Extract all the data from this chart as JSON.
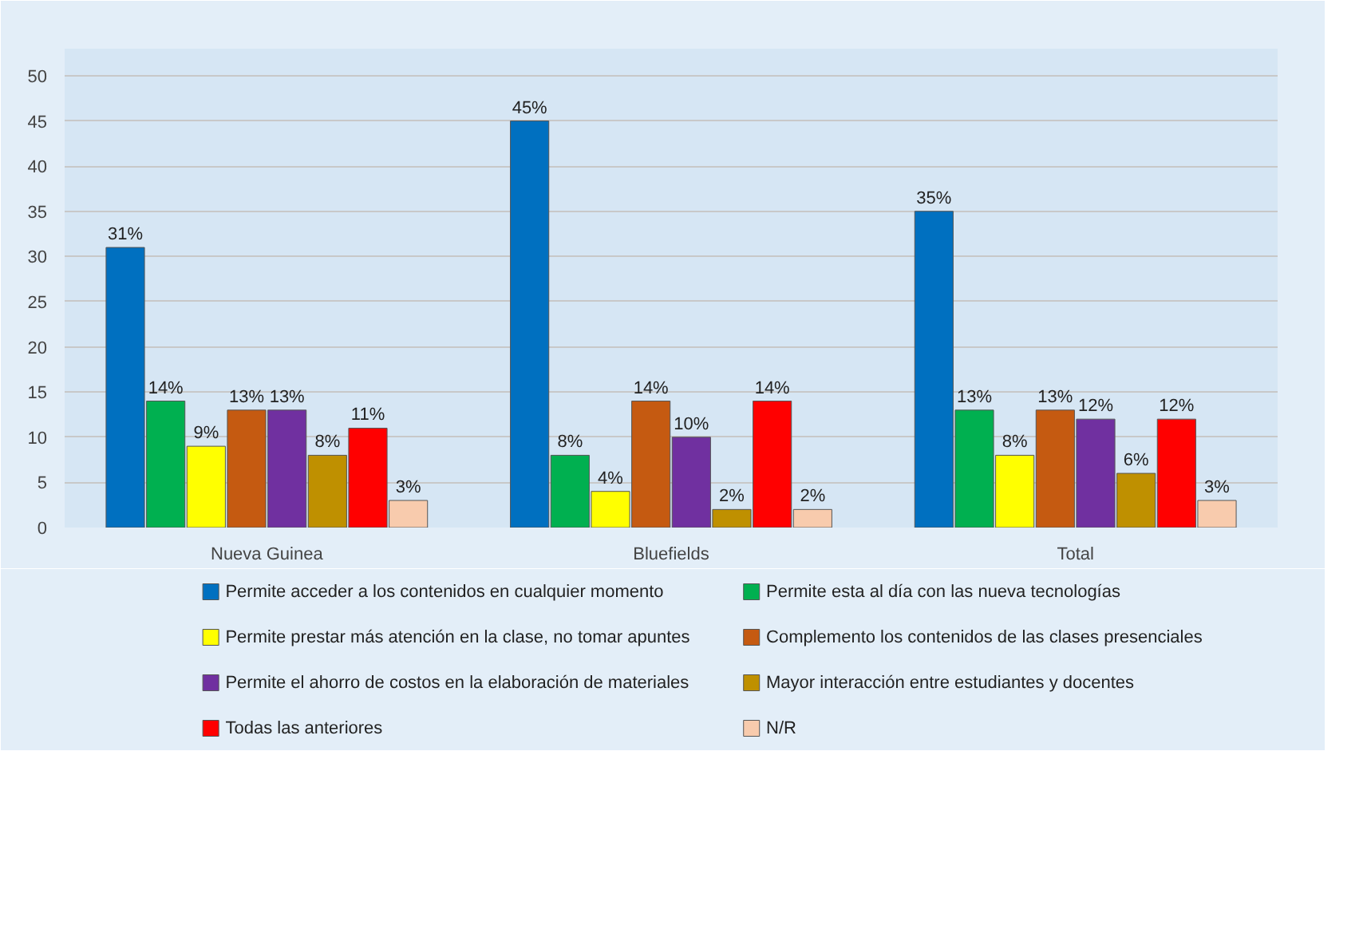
{
  "chart_data": {
    "type": "bar",
    "categories": [
      "Nueva Guinea",
      "Bluefields",
      "Total"
    ],
    "ylim": [
      0,
      50
    ],
    "yticks": [
      0,
      5,
      10,
      15,
      20,
      25,
      30,
      35,
      40,
      45,
      50
    ],
    "grid": "y",
    "legend": "bottom",
    "series": [
      {
        "name": "Permite acceder a los contenidos en cualquier momento",
        "color": "#0070c0",
        "values": [
          31,
          45,
          35
        ],
        "value_labels": [
          "31%",
          "45%",
          "35%"
        ]
      },
      {
        "name": "Permite esta al día con las nueva tecnologías",
        "color": "#00b050",
        "values": [
          14,
          8,
          13
        ],
        "value_labels": [
          "14%",
          "8%",
          "13%"
        ]
      },
      {
        "name": "Permite prestar más atención en la clase, no tomar apuntes",
        "color": "#ffff00",
        "values": [
          9,
          4,
          8
        ],
        "value_labels": [
          "9%",
          "4%",
          "8%"
        ]
      },
      {
        "name": "Complemento los contenidos de las clases presenciales",
        "color": "#c55a11",
        "values": [
          13,
          14,
          13
        ],
        "value_labels": [
          "13%",
          "14%",
          "13%"
        ]
      },
      {
        "name": "Permite el ahorro de costos en la elaboración de materiales",
        "color": "#7030a0",
        "values": [
          13,
          10,
          12
        ],
        "value_labels": [
          "13%",
          "10%",
          "12%"
        ]
      },
      {
        "name": "Mayor interacción entre estudiantes y docentes",
        "color": "#bf9000",
        "values": [
          8,
          2,
          6
        ],
        "value_labels": [
          "8%",
          "2%",
          "6%"
        ]
      },
      {
        "name": "Todas las anteriores",
        "color": "#ff0000",
        "values": [
          11,
          14,
          12
        ],
        "value_labels": [
          "11%",
          "14%",
          "12%"
        ]
      },
      {
        "name": "N/R",
        "color": "#f8cbad",
        "values": [
          3,
          2,
          3
        ],
        "value_labels": [
          "3%",
          "2%",
          "3%"
        ]
      }
    ]
  }
}
